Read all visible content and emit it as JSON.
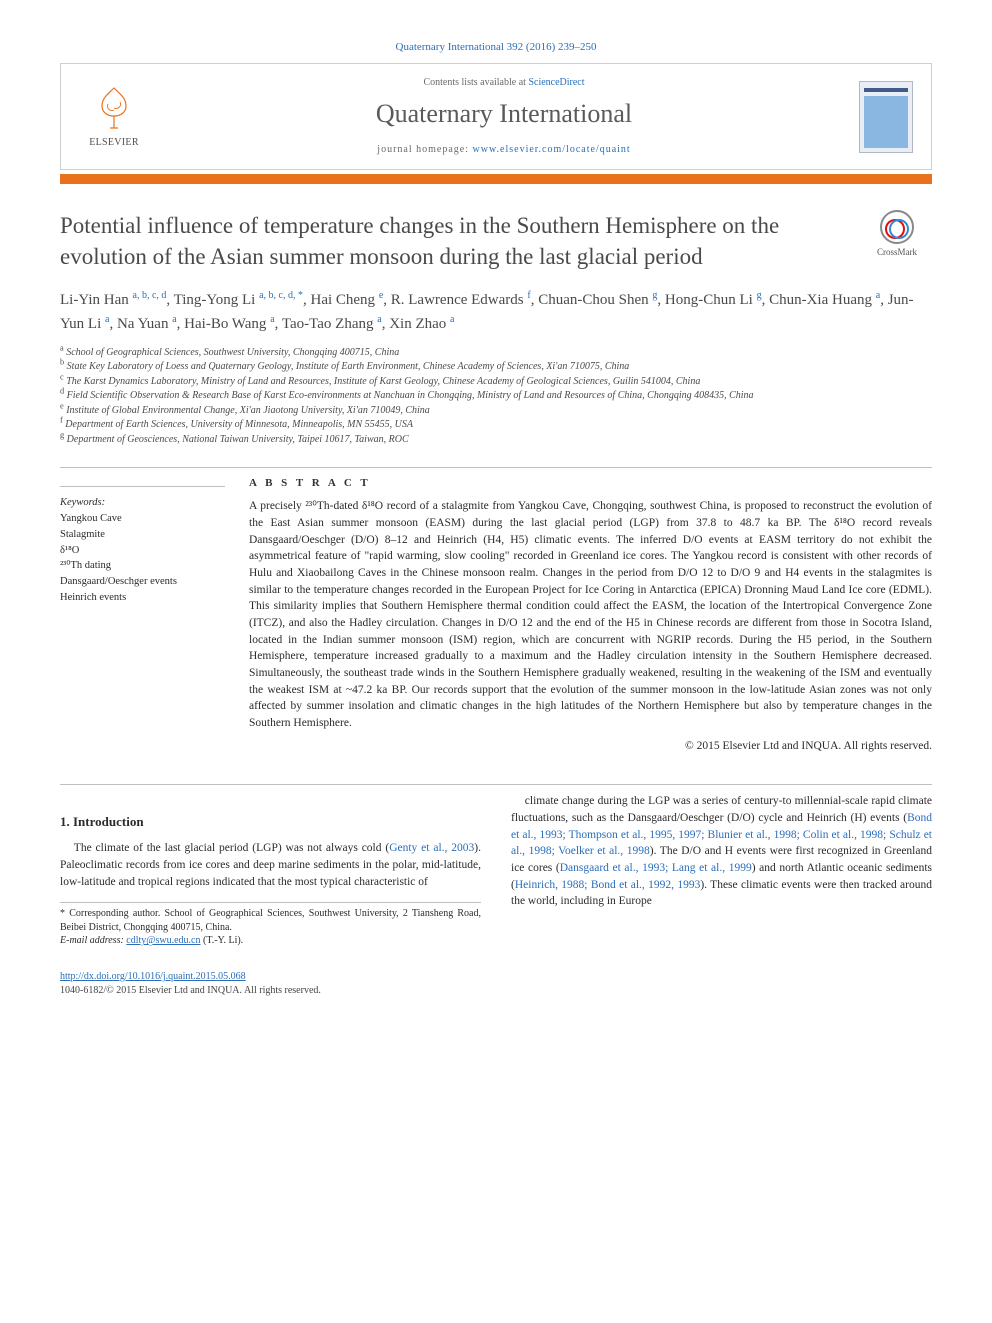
{
  "citation": "Quaternary International 392 (2016) 239–250",
  "header": {
    "contents_prefix": "Contents lists available at ",
    "contents_link": "ScienceDirect",
    "journal": "Quaternary International",
    "homepage_prefix": "journal homepage: ",
    "homepage_url": "www.elsevier.com/locate/quaint",
    "publisher_label": "ELSEVIER"
  },
  "crossmark_label": "CrossMark",
  "title": "Potential influence of temperature changes in the Southern Hemisphere on the evolution of the Asian summer monsoon during the last glacial period",
  "authors_html": "Li-Yin Han <sup>a, b, c, d</sup>, Ting-Yong Li <sup>a, b, c, d, *</sup>, Hai Cheng <sup>e</sup>, R. Lawrence Edwards <sup>f</sup>, Chuan-Chou Shen <sup>g</sup>, Hong-Chun Li <sup>g</sup>, Chun-Xia Huang <sup>a</sup>, Jun-Yun Li <sup>a</sup>, Na Yuan <sup>a</sup>, Hai-Bo Wang <sup>a</sup>, Tao-Tao Zhang <sup>a</sup>, Xin Zhao <sup>a</sup>",
  "affiliations": [
    {
      "sup": "a",
      "text": "School of Geographical Sciences, Southwest University, Chongqing 400715, China"
    },
    {
      "sup": "b",
      "text": "State Key Laboratory of Loess and Quaternary Geology, Institute of Earth Environment, Chinese Academy of Sciences, Xi'an 710075, China"
    },
    {
      "sup": "c",
      "text": "The Karst Dynamics Laboratory, Ministry of Land and Resources, Institute of Karst Geology, Chinese Academy of Geological Sciences, Guilin 541004, China"
    },
    {
      "sup": "d",
      "text": "Field Scientific Observation & Research Base of Karst Eco-environments at Nanchuan in Chongqing, Ministry of Land and Resources of China, Chongqing 408435, China"
    },
    {
      "sup": "e",
      "text": "Institute of Global Environmental Change, Xi'an Jiaotong University, Xi'an 710049, China"
    },
    {
      "sup": "f",
      "text": "Department of Earth Sciences, University of Minnesota, Minneapolis, MN 55455, USA"
    },
    {
      "sup": "g",
      "text": "Department of Geosciences, National Taiwan University, Taipei 10617, Taiwan, ROC"
    }
  ],
  "keywords": {
    "heading": "Keywords:",
    "items": [
      "Yangkou Cave",
      "Stalagmite",
      "δ¹⁸O",
      "²³⁰Th dating",
      "Dansgaard/Oeschger events",
      "Heinrich events"
    ]
  },
  "abstract": {
    "heading": "A B S T R A C T",
    "text": "A precisely ²³⁰Th-dated δ¹⁸O record of a stalagmite from Yangkou Cave, Chongqing, southwest China, is proposed to reconstruct the evolution of the East Asian summer monsoon (EASM) during the last glacial period (LGP) from 37.8 to 48.7 ka BP. The δ¹⁸O record reveals Dansgaard/Oeschger (D/O) 8–12 and Heinrich (H4, H5) climatic events. The inferred D/O events at EASM territory do not exhibit the asymmetrical feature of \"rapid warming, slow cooling\" recorded in Greenland ice cores. The Yangkou record is consistent with other records of Hulu and Xiaobailong Caves in the Chinese monsoon realm. Changes in the period from D/O 12 to D/O 9 and H4 events in the stalagmites is similar to the temperature changes recorded in the European Project for Ice Coring in Antarctica (EPICA) Dronning Maud Land Ice core (EDML). This similarity implies that Southern Hemisphere thermal condition could affect the EASM, the location of the Intertropical Convergence Zone (ITCZ), and also the Hadley circulation. Changes in D/O 12 and the end of the H5 in Chinese records are different from those in Socotra Island, located in the Indian summer monsoon (ISM) region, which are concurrent with NGRIP records. During the H5 period, in the Southern Hemisphere, temperature increased gradually to a maximum and the Hadley circulation intensity in the Southern Hemisphere decreased. Simultaneously, the southeast trade winds in the Southern Hemisphere gradually weakened, resulting in the weakening of the ISM and eventually the weakest ISM at ~47.2 ka BP. Our records support that the evolution of the summer monsoon in the low-latitude Asian zones was not only affected by summer insolation and climatic changes in the high latitudes of the Northern Hemisphere but also by temperature changes in the Southern Hemisphere.",
    "copyright": "© 2015 Elsevier Ltd and INQUA. All rights reserved."
  },
  "section1": {
    "heading": "1. Introduction",
    "para1_a": "The climate of the last glacial period (LGP) was not always cold (",
    "para1_link1": "Genty et al., 2003",
    "para1_b": "). Paleoclimatic records from ice cores and deep marine sediments in the polar, mid-latitude, low-latitude and tropical regions indicated that the most typical characteristic of",
    "para2_a": "climate change during the LGP was a series of century-to millennial-scale rapid climate fluctuations, such as the Dansgaard/Oeschger (D/O) cycle and Heinrich (H) events (",
    "para2_link1": "Bond et al., 1993; Thompson et al., 1995, 1997; Blunier et al., 1998; Colin et al., 1998; Schulz et al., 1998; Voelker et al., 1998",
    "para2_b": "). The D/O and H events were first recognized in Greenland ice cores (",
    "para2_link2": "Dansgaard et al., 1993; Lang et al., 1999",
    "para2_c": ") and north Atlantic oceanic sediments (",
    "para2_link3": "Heinrich, 1988; Bond et al., 1992, 1993",
    "para2_d": "). These climatic events were then tracked around the world, including in Europe"
  },
  "footnote": {
    "corr": "* Corresponding author. School of Geographical Sciences, Southwest University, 2 Tiansheng Road, Beibei District, Chongqing 400715, China.",
    "email_label": "E-mail address: ",
    "email": "cdlty@swu.edu.cn",
    "email_suffix": " (T.-Y. Li)."
  },
  "bottom": {
    "doi_label": "http://dx.doi.org/10.1016/j.quaint.2015.05.068",
    "issn_line": "1040-6182/© 2015 Elsevier Ltd and INQUA. All rights reserved."
  },
  "colors": {
    "link": "#2a6ebb",
    "orange": "#e9711c",
    "text": "#2b2b2b",
    "title_gray": "#4a4a4a",
    "border_gray": "#cfcfcf"
  }
}
